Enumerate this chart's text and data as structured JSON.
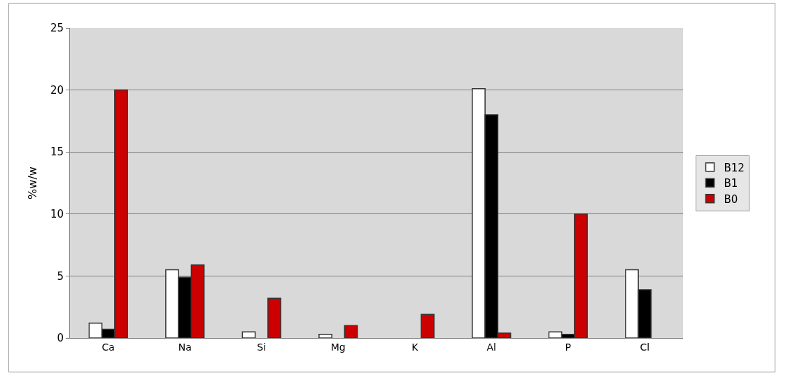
{
  "chart_data": {
    "type": "bar",
    "ylabel": "%w/w",
    "categories": [
      "Ca",
      "Na",
      "Si",
      "Mg",
      "K",
      "Al",
      "P",
      "Cl"
    ],
    "series": [
      {
        "name": "B12",
        "color": "#ffffff",
        "values": [
          1.2,
          5.5,
          0.5,
          0.3,
          null,
          20.1,
          0.5,
          5.5
        ]
      },
      {
        "name": "B1",
        "color": "#000000",
        "values": [
          0.7,
          4.9,
          null,
          null,
          null,
          18.0,
          0.3,
          3.9
        ]
      },
      {
        "name": "B0",
        "color": "#cc0000",
        "values": [
          20.0,
          5.9,
          3.2,
          1.0,
          1.9,
          0.4,
          10.0,
          null
        ]
      }
    ],
    "ylim": [
      0,
      25
    ],
    "yticks": [
      0,
      5,
      10,
      15,
      20,
      25
    ],
    "grid": "y",
    "legend": "right"
  }
}
